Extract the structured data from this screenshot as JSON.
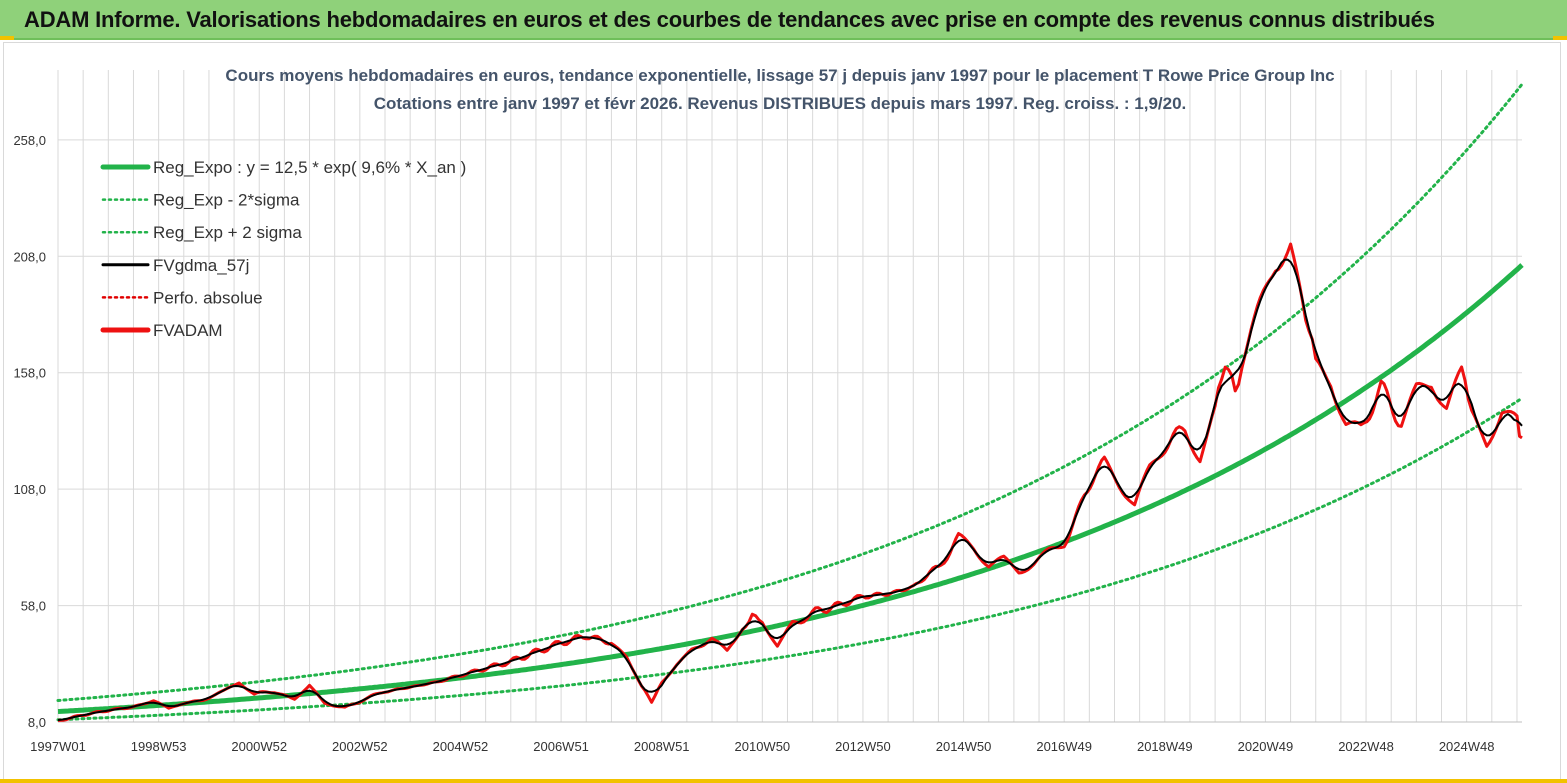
{
  "header": {
    "title": "ADAM Informe. Valorisations hebdomadaires en euros et des courbes de tendances avec prise en compte des revenus connus distribués"
  },
  "colors": {
    "header_bg": "#8fd17a",
    "accent_yellow": "#f2c200",
    "grid": "#d9d9d9",
    "regression": "#22b34a",
    "bands": "#22b34a",
    "smoothed": "#000000",
    "perf": "#e00000",
    "fvadam": "#ee1111"
  },
  "chart_data": {
    "type": "line",
    "title": "Cours moyens hebdomadaires en euros, tendance exponentielle, lissage 57 j depuis janv 1997 pour le placement T Rowe Price Group Inc",
    "subtitle": "Cotations entre janv 1997 et févr 2026. Revenus DISTRIBUES depuis mars 1997. Reg. croiss. : 1,9/20.",
    "xlabel": "",
    "ylabel": "",
    "x_range": [
      1997.0,
      2026.1
    ],
    "ylim": [
      8.0,
      288.0
    ],
    "y_ticks": [
      8.0,
      58.0,
      108.0,
      158.0,
      208.0,
      258.0
    ],
    "y_tick_labels": [
      "8,0",
      "58,0",
      "108,0",
      "158,0",
      "208,0",
      "258,0"
    ],
    "x_ticks": [
      1997.0,
      1999.0,
      2001.0,
      2003.0,
      2005.0,
      2007.0,
      2009.0,
      2011.0,
      2013.0,
      2015.0,
      2017.0,
      2019.0,
      2021.0,
      2023.0,
      2025.0
    ],
    "x_tick_labels": [
      "1997W01",
      "1998W53",
      "2000W52",
      "2002W52",
      "2004W52",
      "2006W51",
      "2008W51",
      "2010W50",
      "2012W50",
      "2014W50",
      "2016W49",
      "2018W49",
      "2020W49",
      "2022W48",
      "2024W48"
    ],
    "grid": true,
    "legend_position": "top-left",
    "legend": [
      {
        "label": "Reg_Expo : y = 12,5 * exp( 9,6% *  X_an )",
        "style": "solid-thick",
        "color": "#22b34a"
      },
      {
        "label": "Reg_Exp - 2*sigma",
        "style": "dotted",
        "color": "#22b34a"
      },
      {
        "label": "Reg_Exp + 2 sigma",
        "style": "dotted",
        "color": "#22b34a"
      },
      {
        "label": "FVgdma_57j",
        "style": "solid",
        "color": "#000000"
      },
      {
        "label": "Perfo. absolue",
        "style": "dotted",
        "color": "#e00000"
      },
      {
        "label": "FVADAM",
        "style": "solid-thick",
        "color": "#ee1111"
      }
    ],
    "series": [
      {
        "name": "Reg_Expo",
        "model": "exponential",
        "a": 12.5,
        "rate": 0.096,
        "x0": 1997.0,
        "x": [
          1997.0,
          2026.1
        ],
        "values": [
          12.5,
          204.0
        ]
      },
      {
        "name": "Reg_Exp - 2*sigma",
        "model": "exponential",
        "factor": 0.72
      },
      {
        "name": "Reg_Exp + 2 sigma",
        "model": "exponential",
        "factor": 1.38
      },
      {
        "name": "FVADAM",
        "x": [
          1997.0,
          1997.5,
          1998.0,
          1998.5,
          1998.9,
          1999.2,
          1999.5,
          2000.0,
          2000.3,
          2000.6,
          2000.9,
          2001.3,
          2001.7,
          2002.0,
          2002.3,
          2002.7,
          2003.1,
          2003.5,
          2004.0,
          2004.5,
          2005.0,
          2005.5,
          2006.0,
          2006.5,
          2007.0,
          2007.5,
          2008.0,
          2008.3,
          2008.6,
          2008.8,
          2009.0,
          2009.3,
          2009.6,
          2010.0,
          2010.3,
          2010.6,
          2010.8,
          2011.0,
          2011.3,
          2011.6,
          2012.0,
          2012.5,
          2013.0,
          2013.5,
          2014.0,
          2014.5,
          2014.9,
          2015.2,
          2015.5,
          2015.8,
          2016.1,
          2016.4,
          2016.7,
          2017.0,
          2017.4,
          2017.8,
          2018.1,
          2018.4,
          2018.7,
          2019.0,
          2019.4,
          2019.7,
          2020.0,
          2020.2,
          2020.4,
          2020.6,
          2020.9,
          2021.2,
          2021.5,
          2021.8,
          2022.0,
          2022.3,
          2022.6,
          2022.9,
          2023.3,
          2023.7,
          2024.0,
          2024.3,
          2024.6,
          2024.9,
          2025.1,
          2025.4,
          2025.7,
          2026.0,
          2026.1
        ],
        "values": [
          8.5,
          11.0,
          13.0,
          14.5,
          17.0,
          13.5,
          16.0,
          18.0,
          21.0,
          25.0,
          20.0,
          21.0,
          18.0,
          24.0,
          16.0,
          14.0,
          18.0,
          21.0,
          23.0,
          25.0,
          28.0,
          31.0,
          34.0,
          38.0,
          42.0,
          45.0,
          42.0,
          36.0,
          24.0,
          17.0,
          25.0,
          33.0,
          39.0,
          43.0,
          38.0,
          48.0,
          55.0,
          52.0,
          41.0,
          50.0,
          55.0,
          58.0,
          62.0,
          63.0,
          66.0,
          75.0,
          86.0,
          82.0,
          75.0,
          78.0,
          74.0,
          77.0,
          82.0,
          85.0,
          105.0,
          120.0,
          110.0,
          100.0,
          115.0,
          125.0,
          135.0,
          122.0,
          140.0,
          160.0,
          150.0,
          165.0,
          185.0,
          205.0,
          215.0,
          180.0,
          160.0,
          155.0,
          138.0,
          135.0,
          150.0,
          138.0,
          152.0,
          155.0,
          142.0,
          156.0,
          140.0,
          128.0,
          140.0,
          135.0,
          130.0
        ]
      },
      {
        "name": "FVgdma_57j",
        "smoothing": "moving-average-of-FVADAM"
      }
    ]
  }
}
